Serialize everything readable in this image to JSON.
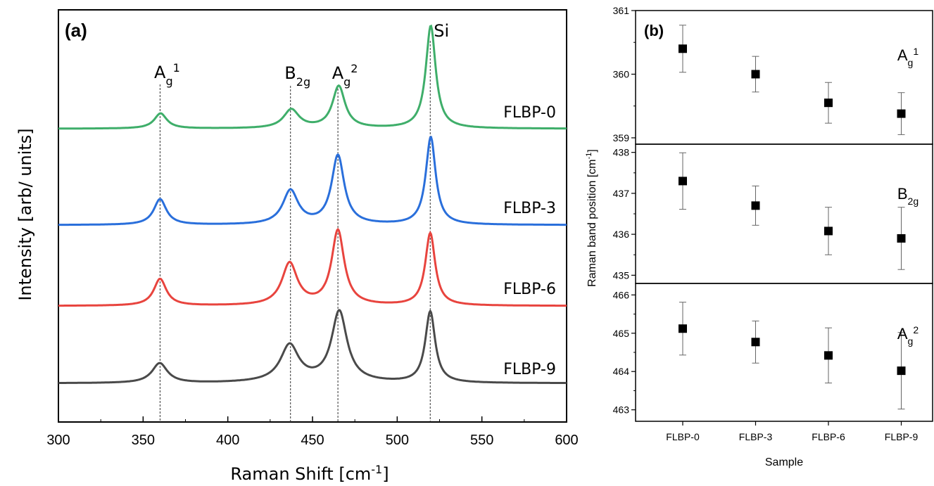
{
  "chart_data": [
    {
      "type": "line",
      "panel_label": "(a)",
      "xlabel": "Raman Shift [cm",
      "xlabel_sup": "-1",
      "xlabel_close": "]",
      "ylabel": "Intensity [arb/ units]",
      "xlim": [
        300,
        600
      ],
      "xticks": [
        "300",
        "350",
        "400",
        "450",
        "500",
        "550",
        "600"
      ],
      "y_ticks_shown": false,
      "peak_markers": [
        {
          "x": 360,
          "label": "A",
          "sub": "g",
          "sup": "1"
        },
        {
          "x": 437,
          "label": "B",
          "sub": "2g",
          "sup": ""
        },
        {
          "x": 465,
          "label": "A",
          "sub": "g",
          "sup": "2"
        },
        {
          "x": 519.5,
          "label": "Si",
          "sub": "",
          "sup": ""
        }
      ],
      "series": [
        {
          "name": "FLBP-0",
          "color": "#3fae6a",
          "peaks": [
            {
              "x": 360.3,
              "height": 0.13
            },
            {
              "x": 437.5,
              "height": 0.16
            },
            {
              "x": 465.5,
              "height": 0.36
            },
            {
              "x": 519.8,
              "height": 0.88
            }
          ]
        },
        {
          "name": "FLBP-3",
          "color": "#2a6fdb",
          "peaks": [
            {
              "x": 360.0,
              "height": 0.22
            },
            {
              "x": 437.0,
              "height": 0.29
            },
            {
              "x": 465.0,
              "height": 0.59
            },
            {
              "x": 519.8,
              "height": 0.75
            }
          ]
        },
        {
          "name": "FLBP-6",
          "color": "#e8443e",
          "peaks": [
            {
              "x": 360.0,
              "height": 0.23
            },
            {
              "x": 436.5,
              "height": 0.36
            },
            {
              "x": 465.0,
              "height": 0.64
            },
            {
              "x": 519.5,
              "height": 0.62
            }
          ]
        },
        {
          "name": "FLBP-9",
          "color": "#4a4a4a",
          "peaks": [
            {
              "x": 359.8,
              "height": 0.17
            },
            {
              "x": 436.5,
              "height": 0.31
            },
            {
              "x": 465.8,
              "height": 0.6
            },
            {
              "x": 519.5,
              "height": 0.61
            }
          ]
        }
      ]
    },
    {
      "type": "scatter",
      "panel_label": "(b)",
      "xlabel": "Sample",
      "ylabel": "Raman band position [cm",
      "ylabel_sup": "-1",
      "ylabel_close": "]",
      "categories": [
        "FLBP-0",
        "FLBP-3",
        "FLBP-6",
        "FLBP-9"
      ],
      "subplots": [
        {
          "label": "A",
          "sub": "g",
          "sup": "1",
          "ylim": [
            358.9,
            361
          ],
          "yticks": [
            "359",
            "360",
            "361"
          ],
          "values": [
            360.4,
            360.0,
            359.55,
            359.38
          ],
          "errors": [
            0.37,
            0.28,
            0.32,
            0.33
          ]
        },
        {
          "label": "B",
          "sub": "2g",
          "sup": "",
          "ylim": [
            434.8,
            438.2
          ],
          "yticks": [
            "435",
            "436",
            "437",
            "438"
          ],
          "values": [
            437.3,
            436.7,
            436.08,
            435.9
          ],
          "errors": [
            0.69,
            0.48,
            0.58,
            0.76
          ]
        },
        {
          "label": "A",
          "sub": "g",
          "sup": "2",
          "ylim": [
            462.7,
            466.3
          ],
          "yticks": [
            "463",
            "464",
            "465",
            "466"
          ],
          "values": [
            465.12,
            464.77,
            464.42,
            464.02
          ],
          "errors": [
            0.69,
            0.55,
            0.72,
            1.0
          ]
        }
      ]
    }
  ]
}
